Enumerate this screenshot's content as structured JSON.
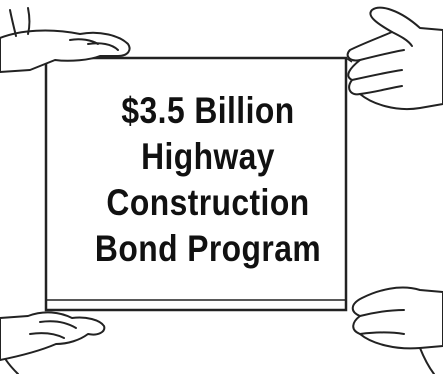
{
  "illustration": {
    "headline_lines": [
      "$3.5 Billion",
      "Highway",
      "Construction",
      "Bond Program"
    ],
    "colors": {
      "ink": "#111111",
      "paper": "#ffffff",
      "box_line": "#222222"
    }
  }
}
